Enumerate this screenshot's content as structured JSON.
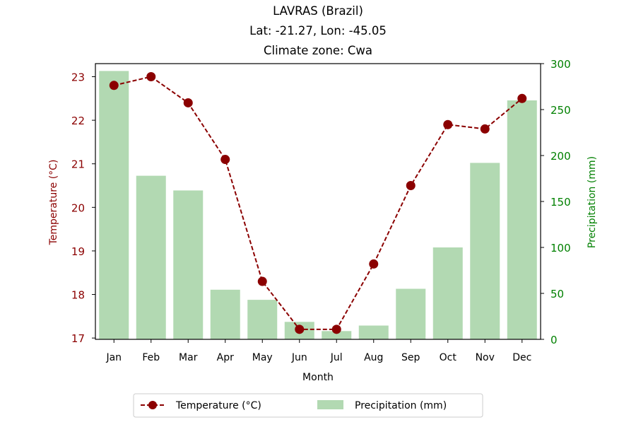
{
  "chart_data": {
    "type": "bar+line",
    "title_lines": [
      "LAVRAS (Brazil)",
      "Lat: -21.27, Lon: -45.05",
      "Climate zone: Cwa"
    ],
    "categories": [
      "Jan",
      "Feb",
      "Mar",
      "Apr",
      "May",
      "Jun",
      "Jul",
      "Aug",
      "Sep",
      "Oct",
      "Nov",
      "Dec"
    ],
    "xlabel": "Month",
    "ylabel_left": "Temperature (°C)",
    "ylabel_right": "Precipitation (mm)",
    "ylim_left": [
      16.97,
      23.3
    ],
    "ylim_right": [
      0,
      300
    ],
    "yticks_left": [
      17,
      18,
      19,
      20,
      21,
      22,
      23
    ],
    "yticks_right": [
      0,
      50,
      100,
      150,
      200,
      250,
      300
    ],
    "series": [
      {
        "name": "Temperature (°C)",
        "kind": "line",
        "axis": "left",
        "color": "#8b0000",
        "values": [
          22.8,
          23.0,
          22.4,
          21.1,
          18.3,
          17.2,
          17.2,
          18.7,
          20.5,
          21.9,
          21.8,
          22.5
        ]
      },
      {
        "name": "Precipitation (mm)",
        "kind": "bar",
        "axis": "right",
        "color": "#b2d9b2",
        "values": [
          292,
          178,
          162,
          54,
          43,
          19,
          9,
          15,
          55,
          100,
          192,
          260
        ]
      }
    ],
    "legend_position": "bottom-center",
    "left_axis_color": "#8b0000",
    "right_axis_color": "#008000",
    "grid": false
  }
}
